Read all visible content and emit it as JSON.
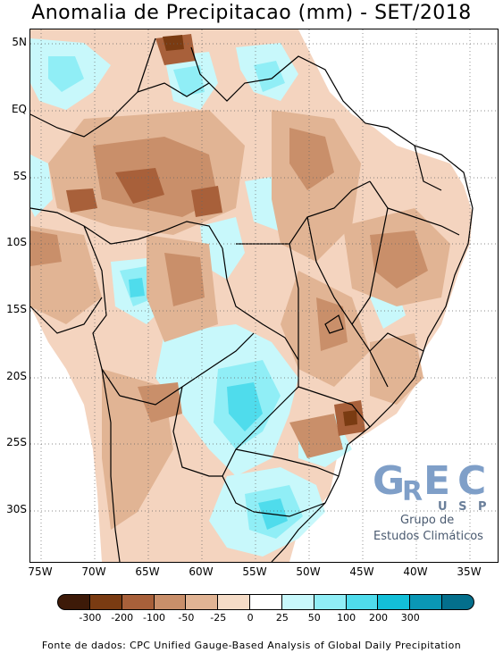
{
  "title": "Anomalia de Precipitacao (mm) - SET/2018",
  "map": {
    "latitude_labels": [
      "5N",
      "EQ",
      "5S",
      "10S",
      "15S",
      "20S",
      "25S",
      "30S"
    ],
    "longitude_labels": [
      "75W",
      "70W",
      "65W",
      "60W",
      "55W",
      "50W",
      "45W",
      "40W",
      "35W"
    ]
  },
  "legend": {
    "tick_labels": [
      "-300",
      "-200",
      "-100",
      "-50",
      "-25",
      "0",
      "25",
      "50",
      "100",
      "200",
      "300"
    ],
    "colors": [
      "#3d1a08",
      "#7a3b12",
      "#a8603a",
      "#c98f6a",
      "#e1b494",
      "#f5dcc7",
      "#ffffff",
      "#c8f8fb",
      "#90eef6",
      "#4fdcec",
      "#13bfd8",
      "#0a97b5",
      "#046f8c"
    ]
  },
  "logo": {
    "big_letters": [
      "G",
      "R",
      "E",
      "C"
    ],
    "subtitle": "U S P",
    "line1": "Grupo de",
    "line2": "Estudos Climáticos"
  },
  "source_text": "Fonte de dados: CPC Unified Gauge-Based Analysis of Global Daily Precipitation"
}
